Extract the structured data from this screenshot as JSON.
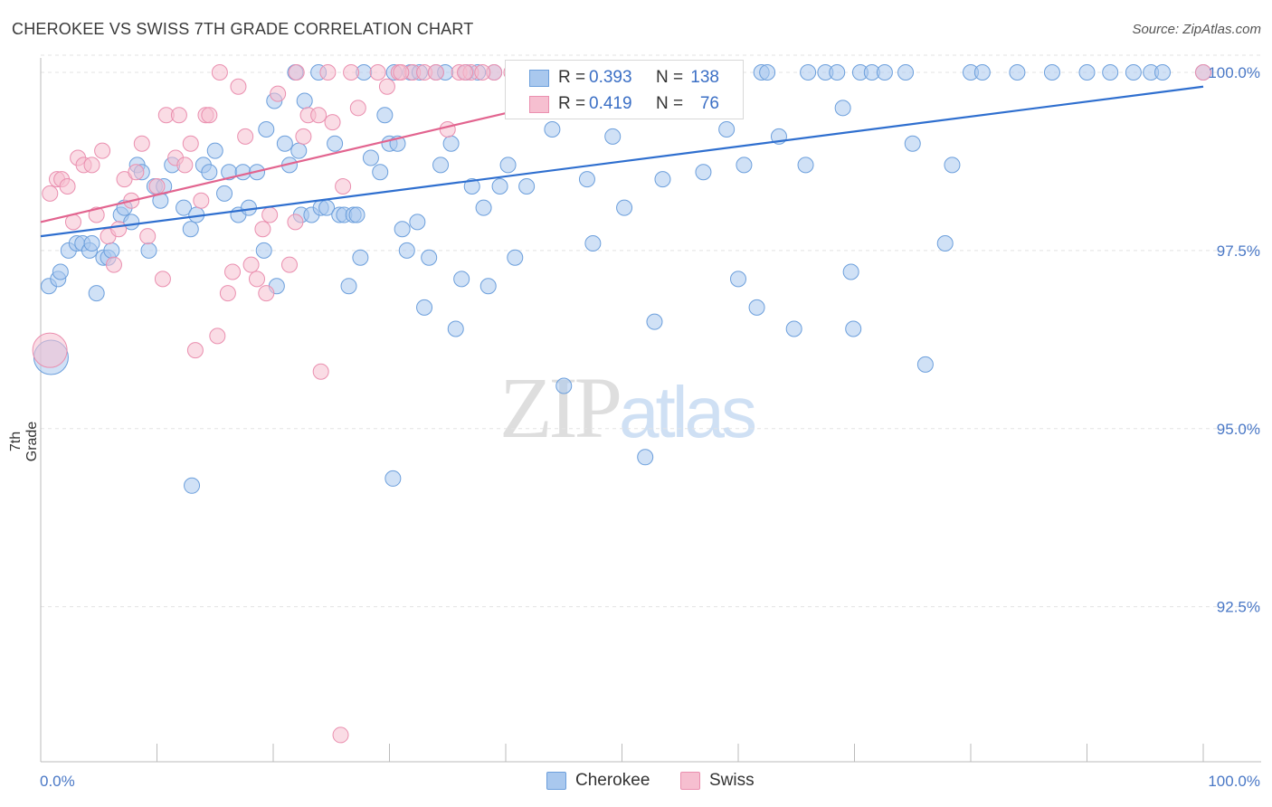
{
  "header": {
    "title": "CHEROKEE VS SWISS 7TH GRADE CORRELATION CHART",
    "source": "Source: ZipAtlas.com"
  },
  "watermark": {
    "zip": "ZIP",
    "atlas": "atlas"
  },
  "legend": {
    "r_label": "R =",
    "n_label": "N =",
    "rows": [
      {
        "series": "Cherokee",
        "r": "0.393",
        "n": "138"
      },
      {
        "series": "Swiss",
        "r": "0.419",
        "n": "76"
      }
    ]
  },
  "bottom_legend": {
    "cherokee": "Cherokee",
    "swiss": "Swiss"
  },
  "colors": {
    "cherokee_fill": "#a9c8ee",
    "cherokee_stroke": "#6c9fdc",
    "cherokee_line": "#2f6fcf",
    "swiss_fill": "#f6bfd0",
    "swiss_stroke": "#ea8faf",
    "swiss_line": "#e2648f",
    "tick_label": "#4a78c6",
    "grid": "#e3e3e3"
  },
  "chart_data": {
    "type": "scatter",
    "title": "CHEROKEE VS SWISS 7TH GRADE CORRELATION CHART",
    "ylabel": "7th Grade",
    "xlabel": "",
    "xlim": [
      0,
      100
    ],
    "ylim": [
      90.3,
      100.5
    ],
    "x_tick_labels": [
      "0.0%",
      "100.0%"
    ],
    "y_ticks": [
      {
        "value": 100.0,
        "label": "100.0%"
      },
      {
        "value": 97.5,
        "label": "97.5%"
      },
      {
        "value": 95.0,
        "label": "95.0%"
      },
      {
        "value": 92.5,
        "label": "92.5%"
      }
    ],
    "grid": "horizontal dashed",
    "legend_placement": "top-center",
    "series": [
      {
        "name": "Cherokee",
        "trend": {
          "x": [
            0,
            100
          ],
          "y": [
            97.7,
            99.8
          ]
        },
        "points": [
          [
            0.7,
            97.0
          ],
          [
            1.5,
            97.1
          ],
          [
            1.7,
            97.2
          ],
          [
            2.4,
            97.5
          ],
          [
            3.1,
            97.6
          ],
          [
            3.6,
            97.6
          ],
          [
            4.2,
            97.5
          ],
          [
            4.4,
            97.6
          ],
          [
            4.8,
            96.9
          ],
          [
            5.4,
            97.4
          ],
          [
            5.8,
            97.4
          ],
          [
            6.1,
            97.5
          ],
          [
            6.9,
            98.0
          ],
          [
            7.2,
            98.1
          ],
          [
            7.8,
            97.9
          ],
          [
            8.3,
            98.7
          ],
          [
            8.7,
            98.6
          ],
          [
            9.3,
            97.5
          ],
          [
            9.8,
            98.4
          ],
          [
            10.3,
            98.2
          ],
          [
            10.6,
            98.4
          ],
          [
            11.3,
            98.7
          ],
          [
            12.3,
            98.1
          ],
          [
            12.9,
            97.8
          ],
          [
            13.4,
            98.0
          ],
          [
            14.0,
            98.7
          ],
          [
            14.5,
            98.6
          ],
          [
            15.0,
            98.9
          ],
          [
            15.8,
            98.3
          ],
          [
            16.2,
            98.6
          ],
          [
            17.0,
            98.0
          ],
          [
            17.4,
            98.6
          ],
          [
            17.9,
            98.1
          ],
          [
            18.6,
            98.6
          ],
          [
            19.2,
            97.5
          ],
          [
            19.4,
            99.2
          ],
          [
            20.1,
            99.6
          ],
          [
            20.3,
            97.0
          ],
          [
            21.0,
            99.0
          ],
          [
            21.4,
            98.7
          ],
          [
            21.9,
            100.0
          ],
          [
            22.4,
            98.0
          ],
          [
            22.7,
            99.6
          ],
          [
            23.3,
            98.0
          ],
          [
            23.9,
            100.0
          ],
          [
            24.1,
            98.1
          ],
          [
            24.6,
            98.1
          ],
          [
            25.3,
            99.0
          ],
          [
            25.7,
            98.0
          ],
          [
            26.1,
            98.0
          ],
          [
            26.5,
            97.0
          ],
          [
            26.9,
            98.0
          ],
          [
            27.5,
            97.4
          ],
          [
            27.8,
            100.0
          ],
          [
            28.4,
            98.8
          ],
          [
            29.2,
            98.6
          ],
          [
            29.6,
            99.4
          ],
          [
            30.0,
            99.0
          ],
          [
            30.4,
            100.0
          ],
          [
            30.7,
            99.0
          ],
          [
            31.1,
            97.8
          ],
          [
            31.5,
            97.5
          ],
          [
            31.8,
            100.0
          ],
          [
            32.4,
            97.9
          ],
          [
            32.6,
            100.0
          ],
          [
            33.0,
            96.7
          ],
          [
            33.4,
            97.4
          ],
          [
            34.0,
            100.0
          ],
          [
            34.4,
            98.7
          ],
          [
            34.8,
            100.0
          ],
          [
            35.3,
            99.0
          ],
          [
            35.7,
            96.4
          ],
          [
            36.2,
            97.1
          ],
          [
            36.6,
            100.0
          ],
          [
            37.1,
            98.4
          ],
          [
            37.6,
            100.0
          ],
          [
            38.1,
            98.1
          ],
          [
            38.5,
            97.0
          ],
          [
            39.5,
            98.4
          ],
          [
            40.2,
            98.7
          ],
          [
            40.8,
            97.4
          ],
          [
            41.8,
            98.4
          ],
          [
            44.0,
            99.2
          ],
          [
            45.0,
            95.6
          ],
          [
            47.0,
            98.5
          ],
          [
            47.5,
            97.6
          ],
          [
            48.5,
            100.0
          ],
          [
            49.2,
            99.1
          ],
          [
            50.2,
            98.1
          ],
          [
            52.0,
            94.6
          ],
          [
            52.8,
            96.5
          ],
          [
            53.5,
            98.5
          ],
          [
            56.0,
            100.0
          ],
          [
            57.0,
            98.6
          ],
          [
            58.0,
            100.0
          ],
          [
            59.0,
            99.2
          ],
          [
            60.0,
            97.1
          ],
          [
            60.5,
            98.7
          ],
          [
            61.6,
            96.7
          ],
          [
            62.0,
            100.0
          ],
          [
            62.5,
            100.0
          ],
          [
            63.5,
            99.1
          ],
          [
            64.8,
            96.4
          ],
          [
            65.8,
            98.7
          ],
          [
            66.0,
            100.0
          ],
          [
            67.5,
            100.0
          ],
          [
            68.5,
            100.0
          ],
          [
            69.0,
            99.5
          ],
          [
            69.7,
            97.2
          ],
          [
            69.9,
            96.4
          ],
          [
            70.5,
            100.0
          ],
          [
            71.5,
            100.0
          ],
          [
            72.6,
            100.0
          ],
          [
            74.4,
            100.0
          ],
          [
            75.0,
            99.0
          ],
          [
            76.1,
            95.9
          ],
          [
            77.8,
            97.6
          ],
          [
            78.4,
            98.7
          ],
          [
            80.0,
            100.0
          ],
          [
            81.0,
            100.0
          ],
          [
            84.0,
            100.0
          ],
          [
            87.0,
            100.0
          ],
          [
            90.0,
            100.0
          ],
          [
            92.0,
            100.0
          ],
          [
            94.0,
            100.0
          ],
          [
            95.5,
            100.0
          ],
          [
            96.5,
            100.0
          ],
          [
            100.0,
            100.0
          ],
          [
            13.0,
            94.2
          ],
          [
            30.3,
            94.3
          ],
          [
            22.2,
            98.9
          ],
          [
            27.2,
            98.0
          ],
          [
            39.0,
            100.0
          ],
          [
            43.0,
            100.0
          ],
          [
            44.8,
            100.0
          ],
          [
            46.0,
            100.0
          ],
          [
            54.8,
            100.0
          ],
          [
            55.5,
            100.0
          ]
        ],
        "large_point": [
          0.5,
          96.0
        ]
      },
      {
        "name": "Swiss",
        "trend": {
          "x": [
            0,
            55
          ],
          "y": [
            97.9,
            100.0
          ]
        },
        "points": [
          [
            0.8,
            98.3
          ],
          [
            1.4,
            98.5
          ],
          [
            1.8,
            98.5
          ],
          [
            2.3,
            98.4
          ],
          [
            2.8,
            97.9
          ],
          [
            3.2,
            98.8
          ],
          [
            3.7,
            98.7
          ],
          [
            4.4,
            98.7
          ],
          [
            4.8,
            98.0
          ],
          [
            5.3,
            98.9
          ],
          [
            5.8,
            97.7
          ],
          [
            6.3,
            97.3
          ],
          [
            6.7,
            97.8
          ],
          [
            7.2,
            98.5
          ],
          [
            7.8,
            98.2
          ],
          [
            8.2,
            98.6
          ],
          [
            8.7,
            99.0
          ],
          [
            9.2,
            97.7
          ],
          [
            10.0,
            98.4
          ],
          [
            10.5,
            97.1
          ],
          [
            10.8,
            99.4
          ],
          [
            11.6,
            98.8
          ],
          [
            11.9,
            99.4
          ],
          [
            12.4,
            98.7
          ],
          [
            12.9,
            99.0
          ],
          [
            13.3,
            96.1
          ],
          [
            13.8,
            98.2
          ],
          [
            14.2,
            99.4
          ],
          [
            14.5,
            99.4
          ],
          [
            15.2,
            96.3
          ],
          [
            15.4,
            100.0
          ],
          [
            16.1,
            96.9
          ],
          [
            16.5,
            97.2
          ],
          [
            17.0,
            99.8
          ],
          [
            17.6,
            99.1
          ],
          [
            18.1,
            97.3
          ],
          [
            18.6,
            97.1
          ],
          [
            19.1,
            97.8
          ],
          [
            19.4,
            96.9
          ],
          [
            19.7,
            98.0
          ],
          [
            20.4,
            99.7
          ],
          [
            21.4,
            97.3
          ],
          [
            21.9,
            97.9
          ],
          [
            22.6,
            99.1
          ],
          [
            23.0,
            99.4
          ],
          [
            23.9,
            99.4
          ],
          [
            24.1,
            95.8
          ],
          [
            24.7,
            100.0
          ],
          [
            25.1,
            99.3
          ],
          [
            25.8,
            90.7
          ],
          [
            26.0,
            98.4
          ],
          [
            26.7,
            100.0
          ],
          [
            27.3,
            99.5
          ],
          [
            29.0,
            100.0
          ],
          [
            29.8,
            99.8
          ],
          [
            30.8,
            100.0
          ],
          [
            32.0,
            100.0
          ],
          [
            33.0,
            100.0
          ],
          [
            34.0,
            100.0
          ],
          [
            35.0,
            99.2
          ],
          [
            36.0,
            100.0
          ],
          [
            37.0,
            100.0
          ],
          [
            39.0,
            100.0
          ],
          [
            40.5,
            100.0
          ],
          [
            42.0,
            100.0
          ],
          [
            44.0,
            100.0
          ],
          [
            46.0,
            100.0
          ],
          [
            48.0,
            100.0
          ],
          [
            50.0,
            100.0
          ],
          [
            100.0,
            100.0
          ],
          [
            22.0,
            100.0
          ],
          [
            31.0,
            100.0
          ],
          [
            36.5,
            100.0
          ],
          [
            38.0,
            100.0
          ],
          [
            45.0,
            100.0
          ],
          [
            47.0,
            100.0
          ]
        ],
        "large_point": [
          0.4,
          96.1
        ]
      }
    ]
  }
}
